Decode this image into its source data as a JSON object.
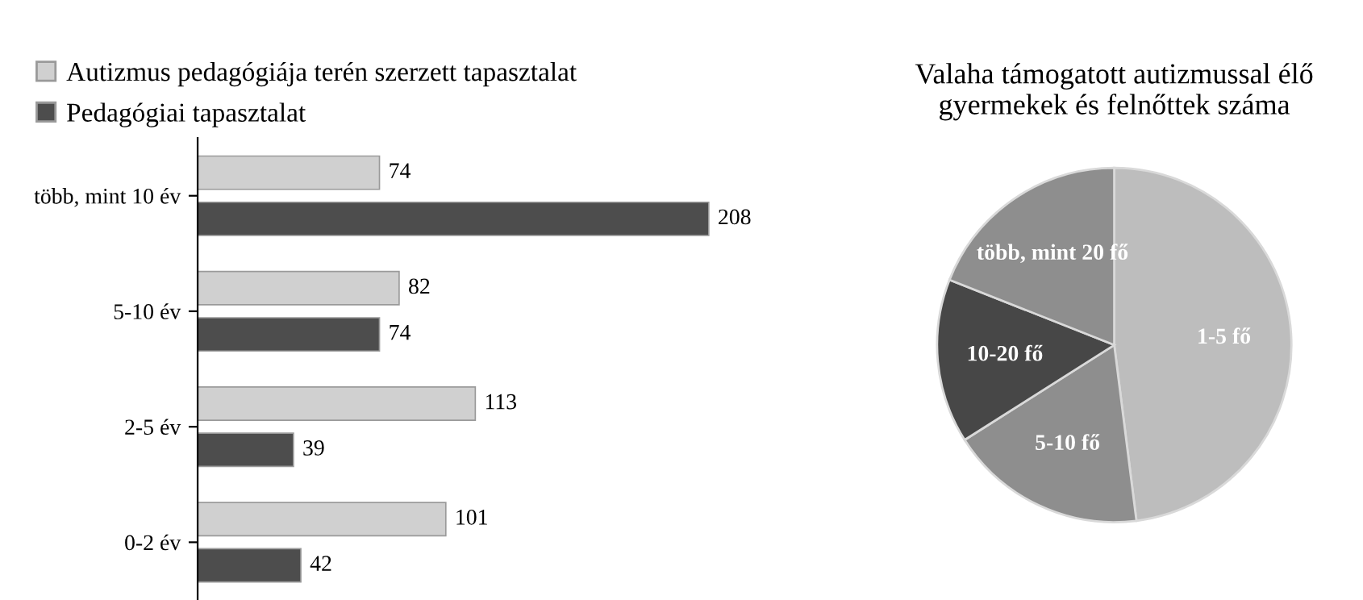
{
  "chart_data": [
    {
      "type": "bar",
      "orientation": "horizontal",
      "categories": [
        "több, mint 10 év",
        "5-10 év",
        "2-5 év",
        "0-2 év"
      ],
      "series": [
        {
          "name": "Autizmus pedagógiája terén szerzett tapasztalat",
          "color": "#d0d0d0",
          "values": [
            74,
            82,
            113,
            101
          ]
        },
        {
          "name": "Pedagógiai tapasztalat",
          "color": "#4d4d4d",
          "values": [
            208,
            74,
            39,
            42
          ]
        }
      ],
      "data_labels": true,
      "legend": "top left",
      "grid": false
    },
    {
      "type": "pie",
      "title": "Valaha támogatott autizmussal élő gyermekek és felnőttek száma",
      "categories": [
        "1-5 fő",
        "5-10 fő",
        "10-20 fő",
        "több, mint 20 fő"
      ],
      "values": [
        48,
        18,
        15,
        19
      ],
      "colors": [
        "#bdbdbd",
        "#8e8e8e",
        "#474747",
        "#8e8e8e"
      ]
    }
  ]
}
